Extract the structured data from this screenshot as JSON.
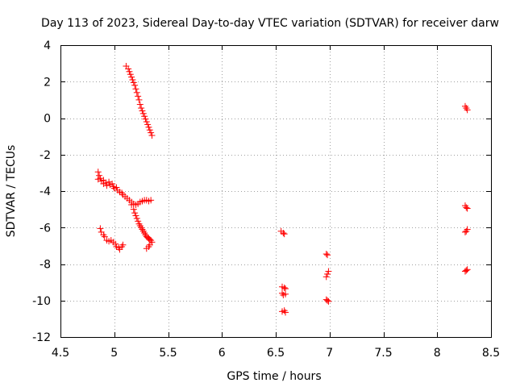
{
  "chart_data": {
    "type": "scatter",
    "title": "Day 113 of 2023, Sidereal Day-to-day VTEC variation (SDTVAR) for receiver darw",
    "xlabel": "GPS time / hours",
    "ylabel": "SDTVAR / TECUs",
    "xlim": [
      4.5,
      8.5
    ],
    "ylim": [
      -12,
      4
    ],
    "xticks": [
      4.5,
      5,
      5.5,
      6,
      6.5,
      7,
      7.5,
      8,
      8.5
    ],
    "xtick_labels": [
      "4.5",
      "5",
      "5.5",
      "6",
      "6.5",
      "7",
      "7.5",
      "8",
      "8.5"
    ],
    "yticks": [
      -12,
      -10,
      -8,
      -6,
      -4,
      -2,
      0,
      2,
      4
    ],
    "ytick_labels": [
      "-12",
      "-10",
      "-8",
      "-6",
      "-4",
      "-2",
      "0",
      "2",
      "4"
    ],
    "grid": true,
    "marker": "plus",
    "series": [
      {
        "color": "#ff0000",
        "points": [
          [
            5.11,
            2.85
          ],
          [
            5.13,
            2.7
          ],
          [
            5.14,
            2.55
          ],
          [
            5.15,
            2.4
          ],
          [
            5.16,
            2.25
          ],
          [
            5.17,
            2.1
          ],
          [
            5.18,
            1.95
          ],
          [
            5.19,
            1.8
          ],
          [
            5.2,
            1.6
          ],
          [
            5.21,
            1.4
          ],
          [
            5.22,
            1.2
          ],
          [
            5.23,
            1.0
          ],
          [
            5.24,
            0.75
          ],
          [
            5.25,
            0.55
          ],
          [
            5.26,
            0.4
          ],
          [
            5.27,
            0.25
          ],
          [
            5.28,
            0.1
          ],
          [
            5.29,
            -0.05
          ],
          [
            5.3,
            -0.2
          ],
          [
            5.31,
            -0.35
          ],
          [
            5.32,
            -0.5
          ],
          [
            5.33,
            -0.65
          ],
          [
            5.34,
            -0.8
          ],
          [
            5.35,
            -0.95
          ],
          [
            4.85,
            -2.95
          ],
          [
            4.86,
            -3.15
          ],
          [
            4.85,
            -3.35
          ],
          [
            4.87,
            -3.3
          ],
          [
            4.88,
            -3.45
          ],
          [
            4.9,
            -3.4
          ],
          [
            4.9,
            -3.6
          ],
          [
            4.92,
            -3.55
          ],
          [
            4.93,
            -3.7
          ],
          [
            4.95,
            -3.5
          ],
          [
            4.96,
            -3.65
          ],
          [
            4.98,
            -3.6
          ],
          [
            4.99,
            -3.75
          ],
          [
            5.0,
            -3.85
          ],
          [
            5.02,
            -3.8
          ],
          [
            5.03,
            -3.95
          ],
          [
            5.05,
            -4.05
          ],
          [
            5.07,
            -4.1
          ],
          [
            5.08,
            -4.2
          ],
          [
            5.1,
            -4.3
          ],
          [
            5.12,
            -4.4
          ],
          [
            5.14,
            -4.5
          ],
          [
            5.16,
            -4.6
          ],
          [
            5.18,
            -4.7
          ],
          [
            5.2,
            -4.75
          ],
          [
            5.22,
            -4.7
          ],
          [
            5.24,
            -4.6
          ],
          [
            5.26,
            -4.55
          ],
          [
            5.28,
            -4.5
          ],
          [
            5.3,
            -4.5
          ],
          [
            5.32,
            -4.55
          ],
          [
            5.34,
            -4.5
          ],
          [
            5.16,
            -4.75
          ],
          [
            5.18,
            -5.0
          ],
          [
            5.19,
            -5.2
          ],
          [
            5.2,
            -5.35
          ],
          [
            5.21,
            -5.5
          ],
          [
            5.22,
            -5.65
          ],
          [
            5.23,
            -5.8
          ],
          [
            5.24,
            -5.9
          ],
          [
            5.25,
            -6.0
          ],
          [
            5.26,
            -6.1
          ],
          [
            5.27,
            -6.2
          ],
          [
            5.28,
            -6.3
          ],
          [
            5.29,
            -6.4
          ],
          [
            5.3,
            -6.5
          ],
          [
            5.31,
            -6.55
          ],
          [
            5.32,
            -6.6
          ],
          [
            5.33,
            -6.65
          ],
          [
            5.34,
            -6.7
          ],
          [
            5.35,
            -6.8
          ],
          [
            5.33,
            -6.95
          ],
          [
            5.32,
            -7.05
          ],
          [
            5.3,
            -7.15
          ],
          [
            4.87,
            -6.05
          ],
          [
            4.88,
            -6.25
          ],
          [
            4.9,
            -6.4
          ],
          [
            4.91,
            -6.5
          ],
          [
            4.93,
            -6.7
          ],
          [
            4.95,
            -6.75
          ],
          [
            4.97,
            -6.7
          ],
          [
            4.99,
            -6.8
          ],
          [
            5.01,
            -6.9
          ],
          [
            5.02,
            -7.05
          ],
          [
            5.04,
            -7.1
          ],
          [
            5.05,
            -7.2
          ],
          [
            5.07,
            -7.05
          ],
          [
            5.08,
            -6.95
          ],
          [
            6.55,
            -6.2
          ],
          [
            6.57,
            -6.3
          ],
          [
            6.58,
            -6.35
          ],
          [
            6.56,
            -9.25
          ],
          [
            6.58,
            -9.3
          ],
          [
            6.59,
            -9.35
          ],
          [
            6.56,
            -9.6
          ],
          [
            6.57,
            -9.7
          ],
          [
            6.59,
            -9.65
          ],
          [
            6.56,
            -10.6
          ],
          [
            6.58,
            -10.55
          ],
          [
            6.59,
            -10.65
          ],
          [
            6.97,
            -7.45
          ],
          [
            6.98,
            -7.5
          ],
          [
            6.97,
            -8.7
          ],
          [
            6.98,
            -8.55
          ],
          [
            6.99,
            -8.4
          ],
          [
            6.97,
            -9.95
          ],
          [
            6.98,
            -10.0
          ],
          [
            6.99,
            -10.05
          ],
          [
            8.26,
            0.65
          ],
          [
            8.27,
            0.55
          ],
          [
            8.28,
            0.45
          ],
          [
            8.26,
            -4.8
          ],
          [
            8.27,
            -4.9
          ],
          [
            8.28,
            -4.95
          ],
          [
            8.26,
            -6.25
          ],
          [
            8.27,
            -6.2
          ],
          [
            8.28,
            -6.1
          ],
          [
            8.26,
            -8.4
          ],
          [
            8.27,
            -8.35
          ],
          [
            8.28,
            -8.3
          ]
        ]
      }
    ]
  }
}
